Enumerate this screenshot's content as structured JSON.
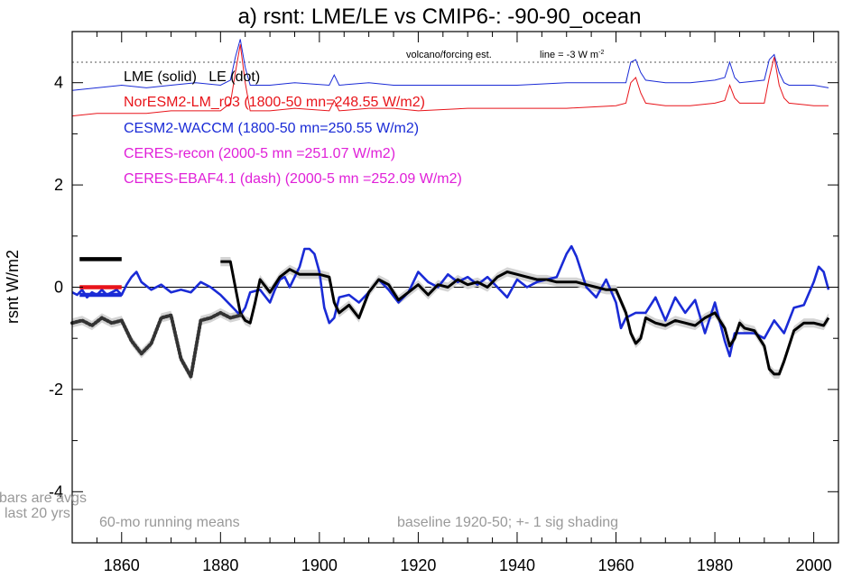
{
  "chart_data": {
    "type": "line",
    "title": "a) rsnt: LME/LE vs CMIP6-: -90-90_ocean",
    "ylabel": "rsnt W/m2",
    "xlabel": "",
    "xlim": [
      1850,
      2005
    ],
    "ylim": [
      -5,
      5
    ],
    "x_ticks": [
      1860,
      1880,
      1900,
      1920,
      1940,
      1960,
      1980,
      2000
    ],
    "y_ticks": [
      -4,
      -2,
      0,
      2,
      4
    ],
    "zero_line": true,
    "legend": {
      "header": "LME (solid)   LE (dot)",
      "entries": [
        {
          "label": "NorESM2-LM_r03 (1800-50 mn=248.55 W/m2)",
          "color": "#e8141a"
        },
        {
          "label": "CESM2-WACCM (1800-50 mn=250.55 W/m2)",
          "color": "#1a2bd6"
        },
        {
          "label": "CERES-recon (2000-5 mn =251.07 W/m2)",
          "color": "#e020d8"
        },
        {
          "label": "CERES-EBAF4.1 (dash) (2000-5 mn =252.09 W/m2)",
          "color": "#e020d8"
        }
      ]
    },
    "annotations": {
      "volcano": "volcano/forcing est.",
      "line_note": "line = -3 W m",
      "line_note_sup": "-2",
      "bars_note_1": "bars are avgs",
      "bars_note_2": "last 20 yrs",
      "running_means": "60-mo running means",
      "baseline": "baseline 1920-50; +- 1 sig shading"
    },
    "volcano_line_y": 4.4,
    "series": [
      {
        "name": "LME (solid)",
        "color": "#000000",
        "style": "solid",
        "shading": true,
        "x": [
          1880,
          1882,
          1884,
          1885,
          1886,
          1887,
          1888,
          1890,
          1892,
          1894,
          1896,
          1898,
          1900,
          1902,
          1903,
          1904,
          1906,
          1908,
          1910,
          1912,
          1914,
          1916,
          1918,
          1920,
          1922,
          1924,
          1926,
          1928,
          1930,
          1932,
          1934,
          1936,
          1938,
          1940,
          1942,
          1944,
          1946,
          1948,
          1950,
          1952,
          1954,
          1956,
          1958,
          1960,
          1962,
          1963,
          1964,
          1965,
          1966,
          1968,
          1970,
          1972,
          1974,
          1976,
          1978,
          1980,
          1982,
          1983,
          1984,
          1985,
          1986,
          1988,
          1990,
          1991,
          1992,
          1993,
          1994,
          1996,
          1998,
          2000,
          2002,
          2003
        ],
        "y": [
          0.5,
          0.5,
          -0.5,
          -0.65,
          -0.7,
          -0.3,
          0.15,
          -0.1,
          0.2,
          0.35,
          0.25,
          0.25,
          0.25,
          0.2,
          -0.3,
          -0.5,
          -0.35,
          -0.6,
          -0.1,
          0.15,
          0.05,
          -0.25,
          -0.1,
          0.05,
          -0.15,
          0.05,
          0.0,
          0.15,
          0.05,
          0.1,
          0.0,
          0.2,
          0.3,
          0.25,
          0.2,
          0.15,
          0.15,
          0.1,
          0.1,
          0.1,
          0.05,
          0.0,
          -0.05,
          -0.05,
          -0.5,
          -0.9,
          -1.1,
          -1.0,
          -0.6,
          -0.7,
          -0.75,
          -0.65,
          -0.7,
          -0.75,
          -0.6,
          -0.5,
          -0.8,
          -1.15,
          -1.0,
          -0.7,
          -0.8,
          -0.85,
          -1.15,
          -1.6,
          -1.7,
          -1.7,
          -1.45,
          -0.85,
          -0.7,
          -0.7,
          -0.75,
          -0.6
        ]
      },
      {
        "name": "CESM2-WACCM",
        "color": "#1a2bd6",
        "style": "solid",
        "shading": false,
        "x": [
          1850,
          1851,
          1852,
          1853,
          1854,
          1855,
          1856,
          1857,
          1858,
          1859,
          1860,
          1861,
          1862,
          1863,
          1864,
          1866,
          1868,
          1870,
          1872,
          1874,
          1876,
          1878,
          1880,
          1882,
          1883,
          1884,
          1885,
          1886,
          1888,
          1890,
          1891,
          1892,
          1893,
          1894,
          1896,
          1897,
          1898,
          1899,
          1900,
          1901,
          1902,
          1903,
          1904,
          1906,
          1908,
          1910,
          1912,
          1914,
          1916,
          1918,
          1920,
          1922,
          1924,
          1926,
          1928,
          1930,
          1932,
          1934,
          1936,
          1938,
          1940,
          1942,
          1944,
          1946,
          1948,
          1950,
          1951,
          1952,
          1954,
          1956,
          1958,
          1960,
          1961,
          1962,
          1964,
          1966,
          1968,
          1970,
          1972,
          1974,
          1976,
          1978,
          1980,
          1982,
          1983,
          1984,
          1986,
          1988,
          1990,
          1992,
          1994,
          1996,
          1998,
          2000,
          2001,
          2002,
          2003
        ],
        "y": [
          -0.1,
          -0.15,
          -0.05,
          -0.2,
          -0.1,
          -0.15,
          -0.05,
          -0.15,
          -0.1,
          -0.05,
          -0.15,
          0.05,
          0.2,
          0.3,
          0.1,
          -0.05,
          0.05,
          -0.1,
          -0.05,
          -0.1,
          0.1,
          0.0,
          -0.15,
          -0.35,
          -0.45,
          -0.55,
          -0.4,
          -0.1,
          -0.05,
          -0.3,
          -0.05,
          0.15,
          0.2,
          0.0,
          0.4,
          0.75,
          0.75,
          0.65,
          0.3,
          -0.4,
          -0.7,
          -0.6,
          -0.2,
          -0.15,
          -0.3,
          -0.1,
          0.15,
          -0.05,
          -0.3,
          -0.1,
          0.3,
          0.1,
          0.0,
          0.25,
          0.1,
          0.2,
          0.05,
          0.2,
          0.0,
          -0.2,
          0.15,
          0.0,
          0.1,
          0.15,
          0.2,
          0.65,
          0.8,
          0.6,
          0.0,
          -0.2,
          0.15,
          -0.3,
          -0.8,
          -0.6,
          -0.5,
          -0.5,
          -0.2,
          -0.65,
          -0.2,
          -0.5,
          -0.25,
          -0.9,
          -0.3,
          -1.05,
          -1.35,
          -0.9,
          -0.9,
          -0.9,
          -1.0,
          -0.65,
          -0.9,
          -0.4,
          -0.35,
          0.1,
          0.4,
          0.3,
          -0.05
        ]
      },
      {
        "name": "LE (dot)",
        "color": "#333333",
        "style": "dot",
        "shading": true,
        "x": [
          1850,
          1852,
          1854,
          1856,
          1858,
          1860,
          1862,
          1864,
          1866,
          1868,
          1870,
          1872,
          1874,
          1876,
          1878,
          1880,
          1882,
          1884
        ],
        "y": [
          -0.7,
          -0.65,
          -0.75,
          -0.6,
          -0.7,
          -0.65,
          -1.05,
          -1.3,
          -1.1,
          -0.6,
          -0.55,
          -1.4,
          -1.75,
          -0.65,
          -0.6,
          -0.5,
          -0.6,
          -0.55
        ]
      }
    ],
    "upper_series": [
      {
        "name": "CESM2-WACCM forcing",
        "color": "#1a2bd6",
        "x": [
          1850,
          1855,
          1860,
          1865,
          1870,
          1875,
          1880,
          1882,
          1883,
          1884,
          1885,
          1886,
          1890,
          1895,
          1902,
          1903,
          1904,
          1910,
          1915,
          1920,
          1930,
          1940,
          1950,
          1960,
          1962,
          1963,
          1964,
          1965,
          1966,
          1970,
          1975,
          1980,
          1982,
          1983,
          1984,
          1985,
          1990,
          1991,
          1992,
          1993,
          1994,
          1995,
          2000,
          2003
        ],
        "y": [
          3.85,
          3.9,
          3.95,
          3.9,
          3.95,
          4.0,
          3.95,
          4.05,
          4.5,
          4.85,
          4.3,
          3.95,
          3.95,
          4.0,
          3.95,
          4.15,
          3.95,
          4.0,
          3.95,
          3.95,
          3.95,
          3.95,
          4.0,
          4.0,
          4.0,
          4.4,
          4.45,
          4.2,
          4.05,
          4.0,
          4.0,
          4.05,
          4.1,
          4.4,
          4.1,
          4.0,
          4.05,
          4.45,
          4.55,
          4.2,
          4.0,
          3.95,
          3.95,
          3.9
        ]
      },
      {
        "name": "NorESM2-LM forcing",
        "color": "#e8141a",
        "x": [
          1850,
          1855,
          1860,
          1865,
          1870,
          1875,
          1880,
          1882,
          1883,
          1884,
          1885,
          1886,
          1890,
          1895,
          1902,
          1903,
          1904,
          1910,
          1915,
          1920,
          1930,
          1940,
          1950,
          1960,
          1962,
          1963,
          1964,
          1965,
          1966,
          1970,
          1975,
          1980,
          1982,
          1983,
          1984,
          1985,
          1990,
          1991,
          1992,
          1993,
          1994,
          1995,
          2000,
          2003
        ],
        "y": [
          3.35,
          3.4,
          3.4,
          3.4,
          3.45,
          3.45,
          3.45,
          3.6,
          4.2,
          4.75,
          4.0,
          3.45,
          3.45,
          3.5,
          3.45,
          3.65,
          3.45,
          3.5,
          3.5,
          3.45,
          3.5,
          3.5,
          3.5,
          3.55,
          3.6,
          4.0,
          4.1,
          3.8,
          3.6,
          3.55,
          3.55,
          3.6,
          3.65,
          3.95,
          3.7,
          3.6,
          3.6,
          4.1,
          4.5,
          3.95,
          3.7,
          3.6,
          3.55,
          3.55
        ]
      }
    ],
    "bars": [
      {
        "name": "LME",
        "color": "#000000",
        "y": 0.55
      },
      {
        "name": "NorESM2-LM_r03",
        "color": "#e8141a",
        "y": 0.0
      },
      {
        "name": "CESM2-WACCM",
        "color": "#1a2bd6",
        "y": -0.15
      }
    ]
  }
}
